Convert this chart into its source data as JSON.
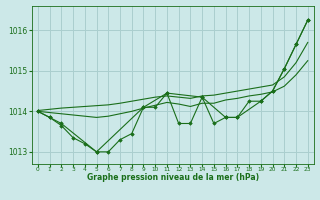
{
  "title": "Graphe pression niveau de la mer (hPa)",
  "background_color": "#cce8e8",
  "grid_color": "#aacece",
  "line_color": "#1a6e1a",
  "xlim": [
    -0.5,
    23.5
  ],
  "ylim": [
    1012.7,
    1016.6
  ],
  "yticks": [
    1013,
    1014,
    1015,
    1016
  ],
  "xticks": [
    0,
    1,
    2,
    3,
    4,
    5,
    6,
    7,
    8,
    9,
    10,
    11,
    12,
    13,
    14,
    15,
    16,
    17,
    18,
    19,
    20,
    21,
    22,
    23
  ],
  "series_jagged": {
    "x": [
      0,
      1,
      2,
      3,
      4,
      5,
      6,
      7,
      8,
      9,
      10,
      11,
      12,
      13,
      14,
      15,
      16,
      17,
      18,
      19,
      20,
      21,
      22,
      23
    ],
    "y": [
      1014.0,
      1013.85,
      1013.65,
      1013.35,
      1013.2,
      1013.0,
      1013.0,
      1013.3,
      1013.45,
      1014.1,
      1014.1,
      1014.45,
      1013.7,
      1013.7,
      1014.35,
      1013.7,
      1013.85,
      1013.85,
      1014.25,
      1014.25,
      1014.5,
      1015.05,
      1015.65,
      1016.25
    ]
  },
  "series_sparse": {
    "x": [
      0,
      1,
      2,
      5,
      9,
      11,
      14,
      16,
      17,
      19,
      20,
      21,
      22,
      23
    ],
    "y": [
      1014.0,
      1013.85,
      1013.7,
      1013.0,
      1014.1,
      1014.45,
      1014.35,
      1013.85,
      1013.85,
      1014.25,
      1014.5,
      1015.05,
      1015.65,
      1016.25
    ]
  },
  "series_smooth1": {
    "x": [
      0,
      1,
      2,
      3,
      4,
      5,
      6,
      7,
      8,
      9,
      10,
      11,
      12,
      13,
      14,
      15,
      16,
      17,
      18,
      19,
      20,
      21,
      22,
      23
    ],
    "y": [
      1014.0,
      1013.97,
      1013.94,
      1013.91,
      1013.88,
      1013.85,
      1013.88,
      1013.94,
      1014.0,
      1014.08,
      1014.15,
      1014.22,
      1014.18,
      1014.12,
      1014.2,
      1014.2,
      1014.28,
      1014.32,
      1014.38,
      1014.42,
      1014.48,
      1014.62,
      1014.9,
      1015.25
    ]
  },
  "series_smooth2": {
    "x": [
      0,
      1,
      2,
      3,
      4,
      5,
      6,
      7,
      8,
      9,
      10,
      11,
      12,
      13,
      14,
      15,
      16,
      17,
      18,
      19,
      20,
      21,
      22,
      23
    ],
    "y": [
      1014.02,
      1014.05,
      1014.08,
      1014.1,
      1014.12,
      1014.14,
      1014.16,
      1014.2,
      1014.25,
      1014.3,
      1014.35,
      1014.38,
      1014.35,
      1014.32,
      1014.38,
      1014.4,
      1014.45,
      1014.5,
      1014.55,
      1014.6,
      1014.65,
      1014.85,
      1015.2,
      1015.7
    ]
  }
}
